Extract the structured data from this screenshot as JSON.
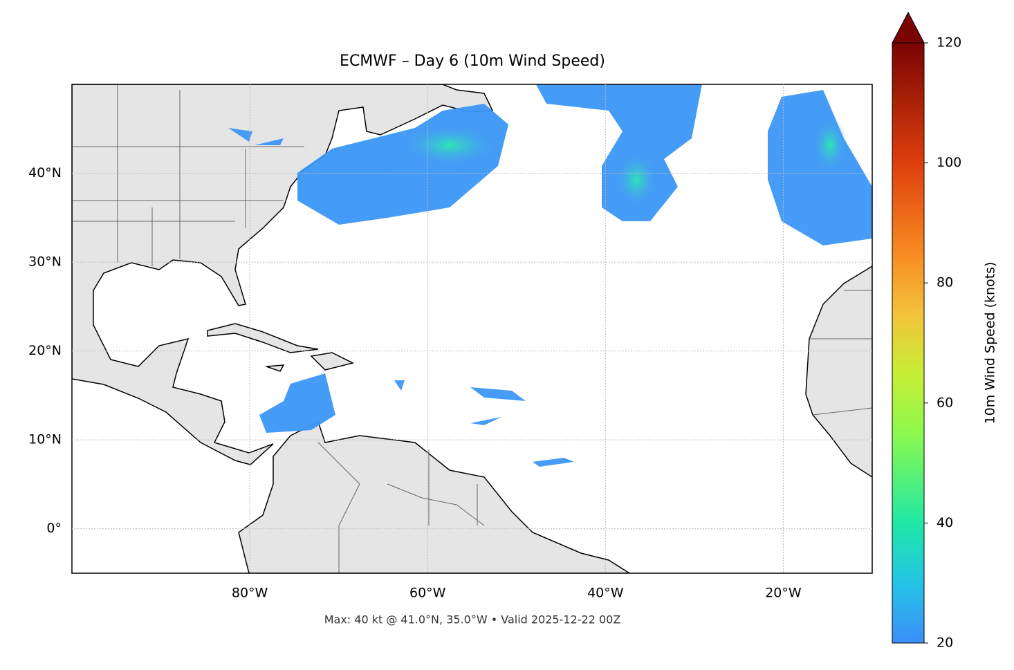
{
  "chart_data": {
    "type": "map",
    "title": "ECMWF – Day 6 (10m Wind Speed)",
    "footer": "Max: 40 kt @ 41.0°N, 35.0°W • Valid 2025-12-22 00Z",
    "xlim": [
      -100,
      -10
    ],
    "ylim": [
      -5,
      50
    ],
    "xticks": [
      {
        "value": -80,
        "label": "80°W"
      },
      {
        "value": -60,
        "label": "60°W"
      },
      {
        "value": -40,
        "label": "40°W"
      },
      {
        "value": -20,
        "label": "20°W"
      }
    ],
    "yticks": [
      {
        "value": 0,
        "label": "0°"
      },
      {
        "value": 10,
        "label": "10°N"
      },
      {
        "value": 20,
        "label": "20°N"
      },
      {
        "value": 30,
        "label": "30°N"
      },
      {
        "value": 40,
        "label": "40°N"
      }
    ],
    "grid": true,
    "colorbar": {
      "label": "10m Wind Speed (knots)",
      "lim": [
        20,
        120
      ],
      "ticks": [
        20,
        40,
        60,
        80,
        100,
        120
      ]
    }
  }
}
